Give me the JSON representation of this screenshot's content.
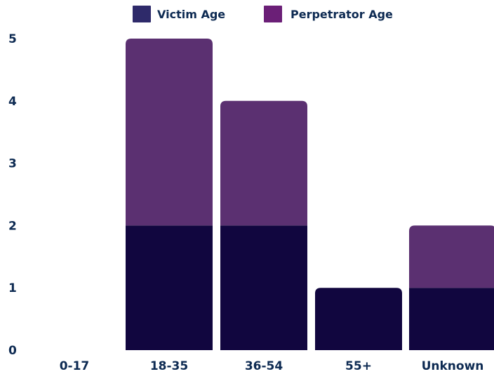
{
  "chart_data": {
    "type": "bar",
    "stacked": true,
    "categories": [
      "0-17",
      "18-35",
      "36-54",
      "55+",
      "Unknown"
    ],
    "series": [
      {
        "name": "Victim Age",
        "values": [
          0,
          2,
          2,
          1,
          1
        ]
      },
      {
        "name": "Perpetrator Age",
        "values": [
          0,
          3,
          2,
          0,
          1
        ]
      }
    ],
    "ylim": [
      0,
      5
    ],
    "yticks": [
      0,
      1,
      2,
      3,
      4,
      5
    ],
    "title": "",
    "xlabel": "",
    "ylabel": "",
    "grid": false,
    "legend": "top-center"
  },
  "colors": {
    "bar_victim": "#11063f",
    "bar_perpetrator": "#5b3071",
    "legend_victim": "#2e2a6a",
    "legend_perpetrator": "#6b1f77",
    "text": "#0d2a52"
  }
}
